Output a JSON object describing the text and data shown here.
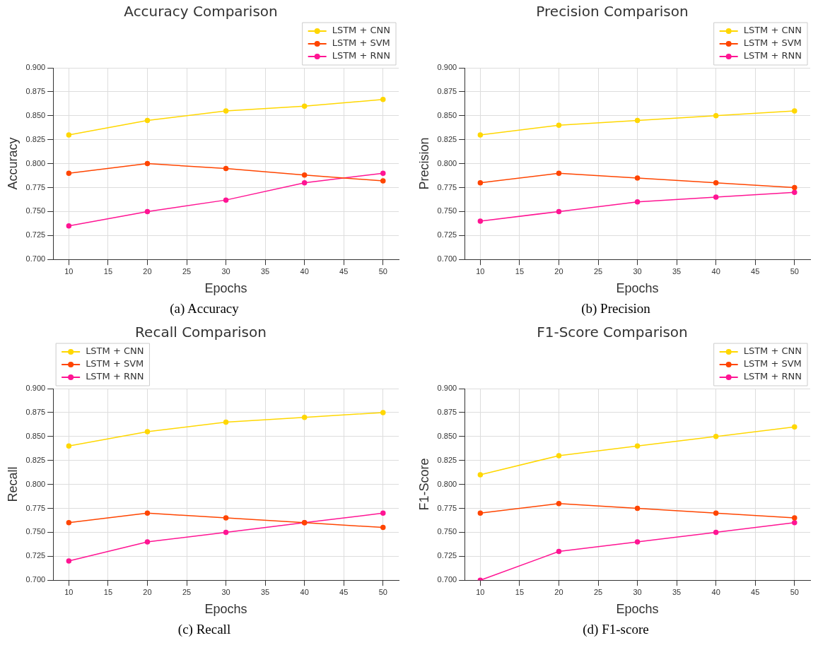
{
  "chart_data": [
    {
      "type": "line",
      "title": "Accuracy Comparison",
      "xlabel": "Epochs",
      "ylabel": "Accuracy",
      "x": [
        10,
        20,
        30,
        40,
        50
      ],
      "xlim": [
        8,
        52
      ],
      "xticks": [
        10,
        15,
        20,
        25,
        30,
        35,
        40,
        45,
        50
      ],
      "ylim": [
        0.7,
        0.9
      ],
      "yticks": [
        {
          "value": 0.7,
          "label": "0.700"
        },
        {
          "value": 0.725,
          "label": "0.725"
        },
        {
          "value": 0.75,
          "label": "0.750"
        },
        {
          "value": 0.775,
          "label": "0.775"
        },
        {
          "value": 0.8,
          "label": "0.800"
        },
        {
          "value": 0.825,
          "label": "0.825"
        },
        {
          "value": 0.85,
          "label": "0.850"
        },
        {
          "value": 0.875,
          "label": "0.875"
        },
        {
          "value": 0.9,
          "label": "0.900"
        }
      ],
      "grid": true,
      "legend": "top right",
      "marker": "circle",
      "annotations": [
        "(a) Accuracy"
      ],
      "series": [
        {
          "name": "LSTM + CNN",
          "color": "#ffd700",
          "values": [
            0.83,
            0.845,
            0.855,
            0.86,
            0.867
          ]
        },
        {
          "name": "LSTM + SVM",
          "color": "#ff4500",
          "values": [
            0.79,
            0.8,
            0.795,
            0.788,
            0.782
          ]
        },
        {
          "name": "LSTM + RNN",
          "color": "#ff1493",
          "values": [
            0.735,
            0.75,
            0.762,
            0.78,
            0.79
          ]
        }
      ]
    },
    {
      "type": "line",
      "title": "Precision Comparison",
      "xlabel": "Epochs",
      "ylabel": "Precision",
      "x": [
        10,
        20,
        30,
        40,
        50
      ],
      "xlim": [
        8,
        52
      ],
      "xticks": [
        10,
        15,
        20,
        25,
        30,
        35,
        40,
        45,
        50
      ],
      "ylim": [
        0.7,
        0.9
      ],
      "yticks": [
        {
          "value": 0.7,
          "label": "0.700"
        },
        {
          "value": 0.725,
          "label": "0.725"
        },
        {
          "value": 0.75,
          "label": "0.750"
        },
        {
          "value": 0.775,
          "label": "0.775"
        },
        {
          "value": 0.8,
          "label": "0.800"
        },
        {
          "value": 0.825,
          "label": "0.825"
        },
        {
          "value": 0.85,
          "label": "0.850"
        },
        {
          "value": 0.875,
          "label": "0.875"
        },
        {
          "value": 0.9,
          "label": "0.900"
        }
      ],
      "grid": true,
      "legend": "top right",
      "marker": "circle",
      "annotations": [
        "(b) Precision"
      ],
      "series": [
        {
          "name": "LSTM + CNN",
          "color": "#ffd700",
          "values": [
            0.83,
            0.84,
            0.845,
            0.85,
            0.855
          ]
        },
        {
          "name": "LSTM + SVM",
          "color": "#ff4500",
          "values": [
            0.78,
            0.79,
            0.785,
            0.78,
            0.775
          ]
        },
        {
          "name": "LSTM + RNN",
          "color": "#ff1493",
          "values": [
            0.74,
            0.75,
            0.76,
            0.765,
            0.77
          ]
        }
      ]
    },
    {
      "type": "line",
      "title": "Recall Comparison",
      "xlabel": "Epochs",
      "ylabel": "Recall",
      "x": [
        10,
        20,
        30,
        40,
        50
      ],
      "xlim": [
        8,
        52
      ],
      "xticks": [
        10,
        15,
        20,
        25,
        30,
        35,
        40,
        45,
        50
      ],
      "ylim": [
        0.7,
        0.9
      ],
      "yticks": [
        {
          "value": 0.7,
          "label": "0.700"
        },
        {
          "value": 0.725,
          "label": "0.725"
        },
        {
          "value": 0.75,
          "label": "0.750"
        },
        {
          "value": 0.775,
          "label": "0.775"
        },
        {
          "value": 0.8,
          "label": "0.800"
        },
        {
          "value": 0.825,
          "label": "0.825"
        },
        {
          "value": 0.85,
          "label": "0.850"
        },
        {
          "value": 0.875,
          "label": "0.875"
        },
        {
          "value": 0.9,
          "label": "0.900"
        }
      ],
      "grid": true,
      "legend": "top left",
      "marker": "circle",
      "annotations": [
        "(c) Recall"
      ],
      "series": [
        {
          "name": "LSTM + CNN",
          "color": "#ffd700",
          "values": [
            0.84,
            0.855,
            0.865,
            0.87,
            0.875
          ]
        },
        {
          "name": "LSTM + SVM",
          "color": "#ff4500",
          "values": [
            0.76,
            0.77,
            0.765,
            0.76,
            0.755
          ]
        },
        {
          "name": "LSTM + RNN",
          "color": "#ff1493",
          "values": [
            0.72,
            0.74,
            0.75,
            0.76,
            0.77
          ]
        }
      ]
    },
    {
      "type": "line",
      "title": "F1-Score Comparison",
      "xlabel": "Epochs",
      "ylabel": "F1-Score",
      "x": [
        10,
        20,
        30,
        40,
        50
      ],
      "xlim": [
        8,
        52
      ],
      "xticks": [
        10,
        15,
        20,
        25,
        30,
        35,
        40,
        45,
        50
      ],
      "ylim": [
        0.7,
        0.9
      ],
      "yticks": [
        {
          "value": 0.7,
          "label": "0.700"
        },
        {
          "value": 0.725,
          "label": "0.725"
        },
        {
          "value": 0.75,
          "label": "0.750"
        },
        {
          "value": 0.775,
          "label": "0.775"
        },
        {
          "value": 0.8,
          "label": "0.800"
        },
        {
          "value": 0.825,
          "label": "0.825"
        },
        {
          "value": 0.85,
          "label": "0.850"
        },
        {
          "value": 0.875,
          "label": "0.875"
        },
        {
          "value": 0.9,
          "label": "0.900"
        }
      ],
      "grid": true,
      "legend": "top right",
      "marker": "circle",
      "annotations": [
        "(d) F1-score"
      ],
      "series": [
        {
          "name": "LSTM + CNN",
          "color": "#ffd700",
          "values": [
            0.81,
            0.83,
            0.84,
            0.85,
            0.86
          ]
        },
        {
          "name": "LSTM + SVM",
          "color": "#ff4500",
          "values": [
            0.77,
            0.78,
            0.775,
            0.77,
            0.765
          ]
        },
        {
          "name": "LSTM + RNN",
          "color": "#ff1493",
          "values": [
            0.7,
            0.73,
            0.74,
            0.75,
            0.76
          ]
        }
      ]
    }
  ]
}
